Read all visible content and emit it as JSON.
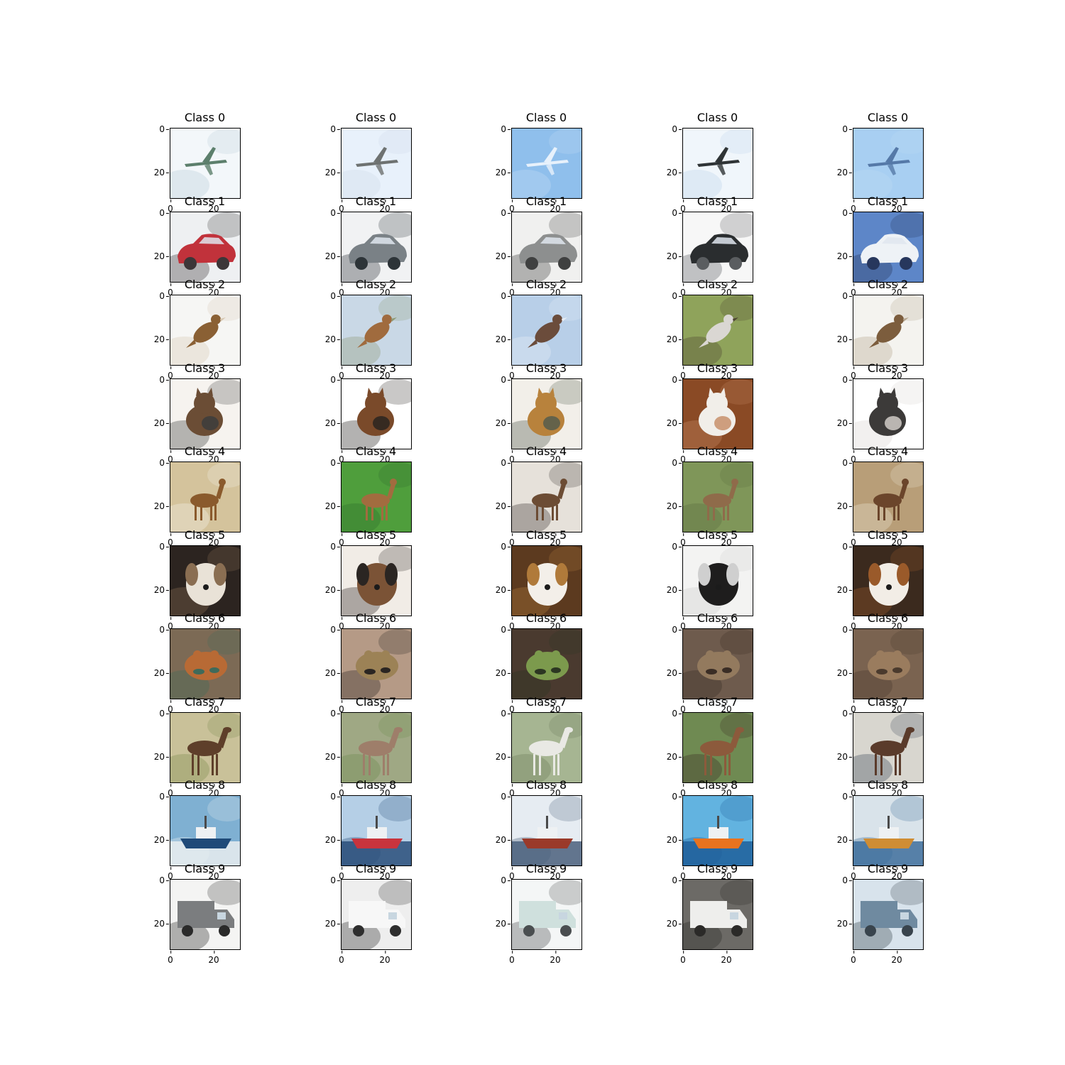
{
  "figure": {
    "columns": 5,
    "rows": [
      {
        "class_id": 0,
        "title": "Class 0",
        "thumbnails": [
          {
            "subject": "airplane",
            "bg": "#f3f7fa",
            "fg": "#5c7f6c",
            "accent": "#b8ccd8"
          },
          {
            "subject": "airplane",
            "bg": "#e8f1fb",
            "fg": "#6e7271",
            "accent": "#cdd9e7"
          },
          {
            "subject": "airplane",
            "bg": "#8fbfec",
            "fg": "#e7f1fb",
            "accent": "#c4dcf5"
          },
          {
            "subject": "airplane",
            "bg": "#f0f6fb",
            "fg": "#2f3436",
            "accent": "#bdd4ea"
          },
          {
            "subject": "airplane",
            "bg": "#a8cff2",
            "fg": "#5579a8",
            "accent": "#bcdbf4"
          }
        ]
      },
      {
        "class_id": 1,
        "title": "Class 1",
        "thumbnails": [
          {
            "subject": "automobile",
            "bg": "#eef0f2",
            "fg": "#c1323b",
            "accent": "#3c3638"
          },
          {
            "subject": "automobile",
            "bg": "#f1f2f3",
            "fg": "#7a8186",
            "accent": "#2d3438"
          },
          {
            "subject": "automobile",
            "bg": "#f0f0ef",
            "fg": "#8d8f8f",
            "accent": "#3f4040"
          },
          {
            "subject": "automobile",
            "bg": "#f7f7f7",
            "fg": "#2a2d2f",
            "accent": "#5a5d60"
          },
          {
            "subject": "automobile",
            "bg": "#5d86c8",
            "fg": "#eef2f6",
            "accent": "#27375d"
          }
        ]
      },
      {
        "class_id": 2,
        "title": "Class 2",
        "thumbnails": [
          {
            "subject": "bird",
            "bg": "#f6f6f4",
            "fg": "#8a6034",
            "accent": "#d7c8b2"
          },
          {
            "subject": "bird",
            "bg": "#c9d8e6",
            "fg": "#a06b3e",
            "accent": "#8e9a76"
          },
          {
            "subject": "bird",
            "bg": "#b8cfe8",
            "fg": "#6b4c3b",
            "accent": "#e8eef6"
          },
          {
            "subject": "bird",
            "bg": "#8fa35b",
            "fg": "#dad7d3",
            "accent": "#4d4430"
          },
          {
            "subject": "bird",
            "bg": "#f4f3ef",
            "fg": "#7c5d3d",
            "accent": "#b5a690"
          }
        ]
      },
      {
        "class_id": 3,
        "title": "Class 3",
        "thumbnails": [
          {
            "subject": "cat",
            "bg": "#f6f3ef",
            "fg": "#6b4d35",
            "accent": "#3a3c3d"
          },
          {
            "subject": "cat",
            "bg": "#ffffff",
            "fg": "#7a4a2a",
            "accent": "#26221f"
          },
          {
            "subject": "cat",
            "bg": "#f2efe9",
            "fg": "#b8823c",
            "accent": "#4f5a4d"
          },
          {
            "subject": "cat",
            "bg": "#8a4a25",
            "fg": "#f1eee9",
            "accent": "#c58963"
          },
          {
            "subject": "cat",
            "bg": "#ffffff",
            "fg": "#3c3a39",
            "accent": "#d9d5d0"
          }
        ]
      },
      {
        "class_id": 4,
        "title": "Class 4",
        "thumbnails": [
          {
            "subject": "deer",
            "bg": "#d4c39c",
            "fg": "#8a5a2c",
            "accent": "#f4f2ea"
          },
          {
            "subject": "deer",
            "bg": "#4f9e3c",
            "fg": "#a26c3f",
            "accent": "#2f6d2b"
          },
          {
            "subject": "deer",
            "bg": "#e6e1da",
            "fg": "#6c4c34",
            "accent": "#3b3633"
          },
          {
            "subject": "deer",
            "bg": "#7f9659",
            "fg": "#8f6b4a",
            "accent": "#5d6e3f"
          },
          {
            "subject": "deer",
            "bg": "#b89e78",
            "fg": "#6b452b",
            "accent": "#e9e3d0"
          }
        ]
      },
      {
        "class_id": 5,
        "title": "Class 5",
        "thumbnails": [
          {
            "subject": "dog",
            "bg": "#2c2420",
            "fg": "#e9e2d7",
            "accent": "#8a6e52"
          },
          {
            "subject": "dog",
            "bg": "#f1ece6",
            "fg": "#7b5336",
            "accent": "#2a2522"
          },
          {
            "subject": "dog",
            "bg": "#5c3a1f",
            "fg": "#f3efe9",
            "accent": "#b07a3a"
          },
          {
            "subject": "dog",
            "bg": "#f3f3f2",
            "fg": "#1e1d1d",
            "accent": "#cfcfcf"
          },
          {
            "subject": "dog",
            "bg": "#3b2a1e",
            "fg": "#f2ede6",
            "accent": "#9a5a2a"
          }
        ]
      },
      {
        "class_id": 6,
        "title": "Class 6",
        "thumbnails": [
          {
            "subject": "frog",
            "bg": "#7c6a55",
            "fg": "#b86a35",
            "accent": "#3f6a5a"
          },
          {
            "subject": "frog",
            "bg": "#b59a86",
            "fg": "#9c8256",
            "accent": "#2b2622"
          },
          {
            "subject": "frog",
            "bg": "#4a3a2f",
            "fg": "#7c9a4d",
            "accent": "#2c3622"
          },
          {
            "subject": "frog",
            "bg": "#6e5b4d",
            "fg": "#937a5e",
            "accent": "#3a2d25"
          },
          {
            "subject": "frog",
            "bg": "#7a6350",
            "fg": "#9a7c5e",
            "accent": "#4a3a2d"
          }
        ]
      },
      {
        "class_id": 7,
        "title": "Class 7",
        "thumbnails": [
          {
            "subject": "horse",
            "bg": "#c9c199",
            "fg": "#5e3f2a",
            "accent": "#7c8d4e"
          },
          {
            "subject": "horse",
            "bg": "#9fa884",
            "fg": "#9e7e6a",
            "accent": "#6d8a4c"
          },
          {
            "subject": "horse",
            "bg": "#a6b592",
            "fg": "#e9e9e4",
            "accent": "#6d7b5a"
          },
          {
            "subject": "horse",
            "bg": "#6f8a52",
            "fg": "#8c5a3c",
            "accent": "#3b2c24"
          },
          {
            "subject": "horse",
            "bg": "#d8d6cf",
            "fg": "#5a3b2b",
            "accent": "#3e4a5a"
          }
        ]
      },
      {
        "class_id": 8,
        "title": "Class 8",
        "thumbnails": [
          {
            "subject": "ship",
            "bg": "#7fb0d2",
            "fg": "#1f4a78",
            "accent": "#e9edf0"
          },
          {
            "subject": "ship",
            "bg": "#b5cfe6",
            "fg": "#c8343d",
            "accent": "#2a4f7a"
          },
          {
            "subject": "ship",
            "bg": "#e6ecf2",
            "fg": "#9a3a2a",
            "accent": "#4a607c"
          },
          {
            "subject": "ship",
            "bg": "#62b3e0",
            "fg": "#e8731f",
            "accent": "#1f5f9a"
          },
          {
            "subject": "ship",
            "bg": "#d9e3ea",
            "fg": "#cf8d34",
            "accent": "#3e6f9c"
          }
        ]
      },
      {
        "class_id": 9,
        "title": "Class 9",
        "thumbnails": [
          {
            "subject": "truck",
            "bg": "#f4f4f3",
            "fg": "#7b7d7f",
            "accent": "#2a2a2a"
          },
          {
            "subject": "truck",
            "bg": "#eeeeee",
            "fg": "#f7f7f7",
            "accent": "#2e2e2e"
          },
          {
            "subject": "truck",
            "bg": "#f4f6f6",
            "fg": "#cfe0dd",
            "accent": "#4a4e50"
          },
          {
            "subject": "truck",
            "bg": "#6c6a66",
            "fg": "#eeeeec",
            "accent": "#2b2a28"
          },
          {
            "subject": "truck",
            "bg": "#d8e3ec",
            "fg": "#6f8aa0",
            "accent": "#39444d"
          }
        ]
      }
    ],
    "yticks": [
      "0",
      "20"
    ],
    "xticks": [
      "0",
      "20"
    ]
  }
}
